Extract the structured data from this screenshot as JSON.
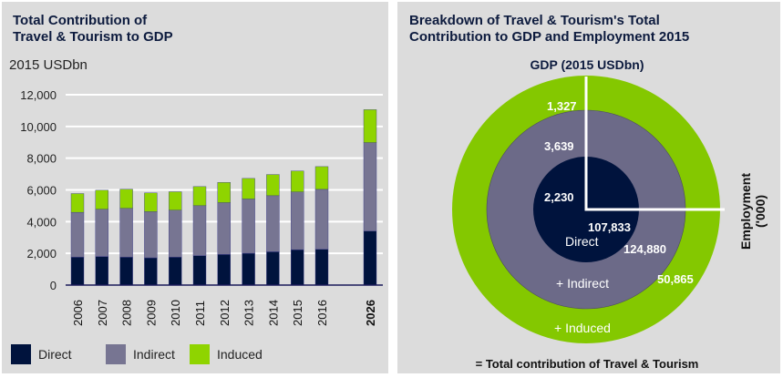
{
  "chart_data": [
    {
      "type": "bar",
      "stacked": true,
      "title": "Total Contribution of Travel & Tourism to GDP",
      "title_lines": [
        "Total Contribution of",
        "Travel & Tourism to GDP"
      ],
      "ylabel": "2015 USDbn",
      "ylim": [
        0,
        12000
      ],
      "yticks": [
        "0",
        "2,000",
        "4,000",
        "6,000",
        "8,000",
        "10,000",
        "12,000"
      ],
      "ytick_values": [
        0,
        2000,
        4000,
        6000,
        8000,
        10000,
        12000
      ],
      "grid": true,
      "categories": [
        "2006",
        "2007",
        "2008",
        "2009",
        "2010",
        "2011",
        "2012",
        "2013",
        "2014",
        "2015",
        "2016",
        "2026"
      ],
      "series": [
        {
          "name": "Direct",
          "color": "#00133d",
          "values": [
            1760,
            1800,
            1760,
            1720,
            1760,
            1850,
            1930,
            2005,
            2100,
            2230,
            2255,
            3400
          ]
        },
        {
          "name": "Indirect",
          "color": "#777592",
          "values": [
            2825,
            2980,
            3075,
            2905,
            2960,
            3155,
            3265,
            3420,
            3535,
            3639,
            3780,
            5580
          ]
        },
        {
          "name": "Induced",
          "color": "#8fd400",
          "values": [
            1185,
            1200,
            1205,
            1185,
            1165,
            1205,
            1280,
            1300,
            1335,
            1327,
            1435,
            2080
          ]
        }
      ],
      "legend_position": "bottom"
    },
    {
      "type": "pie",
      "title_lines": [
        "Breakdown of Travel & Tourism's Total",
        "Contribution to GDP and Employment 2015"
      ],
      "gdp_label": "GDP (2015 USDbn)",
      "employment_label_lines": [
        "Employment",
        "('000)"
      ],
      "rings": [
        {
          "name": "Direct",
          "label": "Direct",
          "gdp": "2,230",
          "employment": "107,833",
          "color": "#00133d"
        },
        {
          "name": "Indirect",
          "label": "+ Indirect",
          "gdp": "3,639",
          "employment": "124,880",
          "color": "#6c6a88"
        },
        {
          "name": "Induced",
          "label": "+ Induced",
          "gdp": "1,327",
          "employment": "50,865",
          "color": "#84c800"
        }
      ],
      "footer": "= Total contribution of Travel & Tourism"
    }
  ]
}
